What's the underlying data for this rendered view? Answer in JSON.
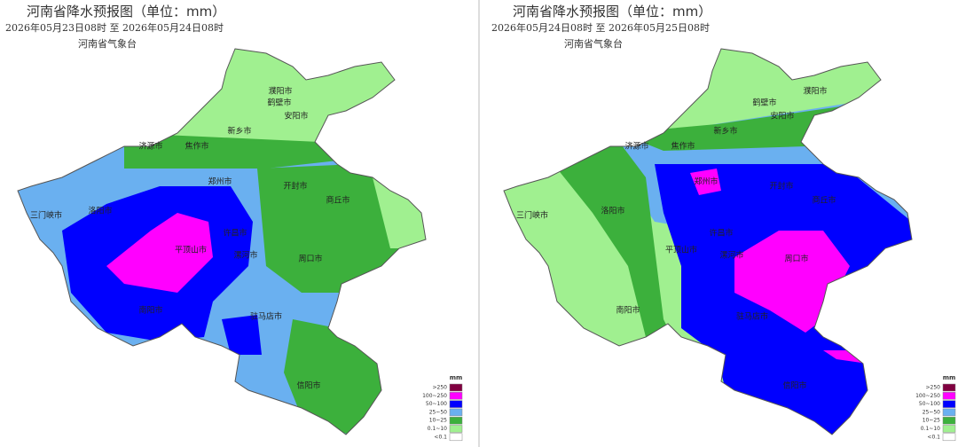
{
  "panels": [
    {
      "title": "河南省降水预报图（单位：mm）",
      "period": "2026年05月23日08时  至  2026年05月24日08时",
      "agency": "河南省气象台",
      "cities": [
        "濮阳市",
        "鹤壁市",
        "安阳市",
        "新乡市",
        "焦作市",
        "济源市",
        "郑州市",
        "开封市",
        "商丘市",
        "三门峡市",
        "洛阳市",
        "平顶山市",
        "许昌市",
        "漯河市",
        "周口市",
        "南阳市",
        "驻马店市",
        "信阳市"
      ],
      "legend": {
        "unit": "mm",
        "labels": [
          ">250",
          "100~250",
          "50~100",
          "25~50",
          "10~25",
          "0.1~10",
          "<0.1"
        ]
      }
    },
    {
      "title": "河南省降水预报图（单位：mm）",
      "period": "2026年05月24日08时  至  2026年05月25日08时",
      "agency": "河南省气象台",
      "cities": [
        "濮阳市",
        "鹤壁市",
        "安阳市",
        "新乡市",
        "焦作市",
        "济源市",
        "郑州市",
        "开封市",
        "商丘市",
        "三门峡市",
        "洛阳市",
        "平顶山市",
        "许昌市",
        "漯河市",
        "周口市",
        "南阳市",
        "驻马店市",
        "信阳市"
      ],
      "legend": {
        "unit": "mm",
        "labels": [
          ">250",
          "100~250",
          "50~100",
          "25~50",
          "10~25",
          "0.1~10",
          "<0.1"
        ]
      }
    }
  ]
}
